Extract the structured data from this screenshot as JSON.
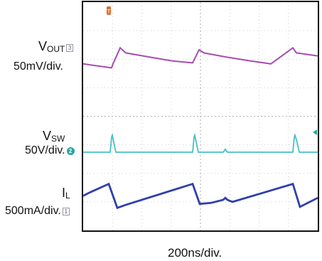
{
  "channels": {
    "vout": {
      "name": "V",
      "subscript": "OUT",
      "scale": "50mV/div.",
      "marker": "3"
    },
    "vsw": {
      "name": "V",
      "subscript": "SW",
      "scale": "50V/div.",
      "marker": "2"
    },
    "il": {
      "name": "I",
      "subscript": "L",
      "scale": "500mA/div.",
      "marker": "1"
    }
  },
  "timebase": "200ns/div.",
  "colors": {
    "vout": "#a64db0",
    "vsw": "#45c0c8",
    "il": "#3040a8",
    "grid": "#bfbfbf",
    "trigger": "#e06a2a"
  },
  "chart_data": {
    "type": "line",
    "xlabel": "200ns/div.",
    "series": [
      {
        "name": "VOUT",
        "x": [
          0,
          40,
          42,
          52,
          60,
          92,
          125,
          154,
          163,
          170,
          200,
          235,
          264,
          295,
          300,
          310,
          330
        ],
        "values": [
          -0.2,
          -0.6,
          -0.2,
          1.4,
          0.9,
          0.5,
          0.1,
          -0.1,
          1.2,
          0.9,
          0.5,
          0.1,
          -0.2,
          1.4,
          0.9,
          0.8,
          0.6
        ]
      },
      {
        "name": "VSW",
        "x": [
          0,
          38,
          40,
          41,
          43,
          46,
          154,
          156,
          157,
          159,
          162,
          197,
          200,
          203,
          295,
          297,
          298,
          301,
          304,
          330
        ],
        "values": [
          0,
          0,
          1.5,
          1.7,
          1.0,
          0,
          0,
          1.5,
          1.7,
          1.0,
          0,
          0,
          0.3,
          0,
          0,
          1.5,
          1.7,
          1.0,
          0,
          0
        ]
      },
      {
        "name": "IL",
        "x": [
          0,
          8,
          36,
          44,
          48,
          60,
          154,
          164,
          180,
          197,
          200,
          203,
          210,
          295,
          305,
          330
        ],
        "values": [
          -0.6,
          -0.3,
          0.6,
          -1.0,
          -1.8,
          -1.5,
          0.6,
          -1.4,
          -1.3,
          -1.0,
          -0.8,
          -1.0,
          -1.2,
          0.6,
          -1.7,
          -0.8
        ]
      }
    ]
  }
}
